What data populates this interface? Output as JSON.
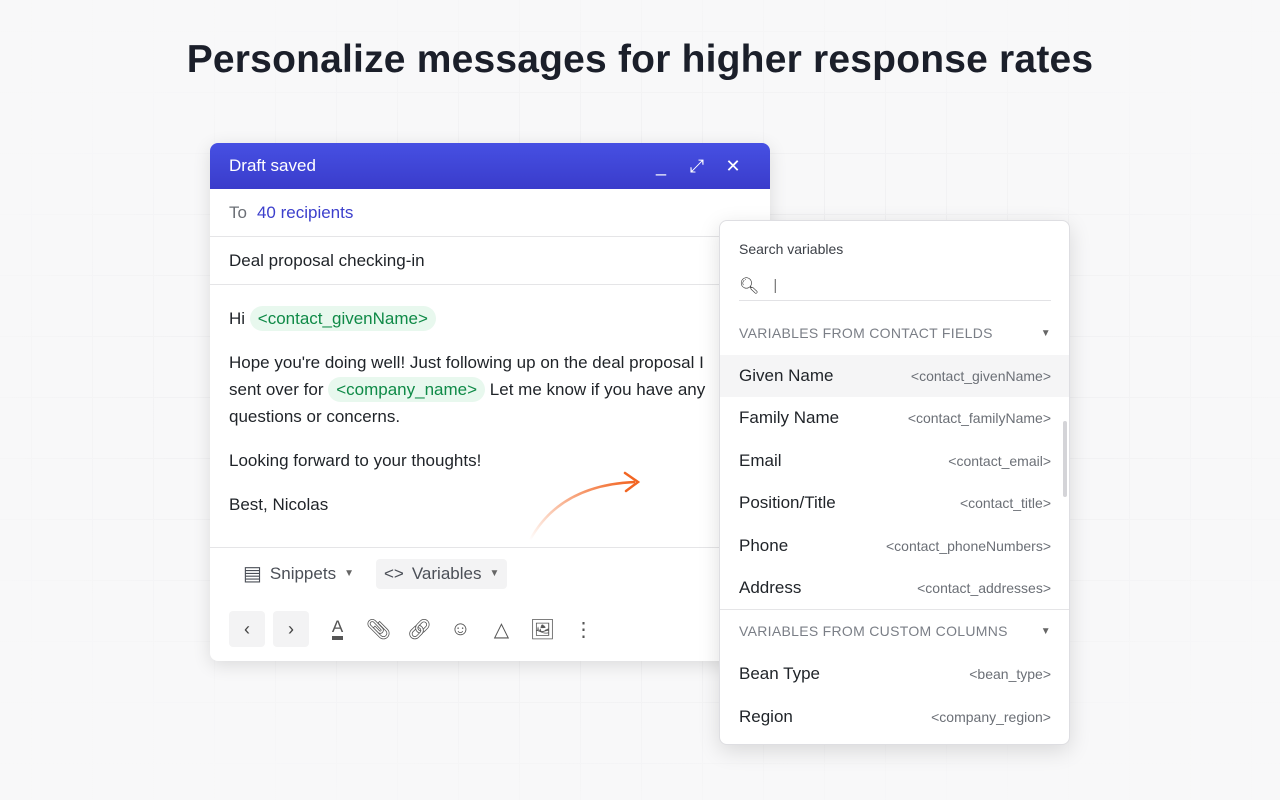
{
  "headline": "Personalize messages for higher response rates",
  "compose": {
    "title": "Draft saved",
    "to_label": "To",
    "recipients": "40 recipients",
    "subject": "Deal proposal checking-in",
    "body": {
      "greeting": "Hi",
      "greeting_var": "<contact_givenName>",
      "p1_a": "Hope you're doing well! Just following up on the deal proposal I",
      "p1_b": "sent over for",
      "p1_var": "<company_name>",
      "p1_c": "Let me know if you have any",
      "p1_d": "questions or concerns.",
      "p2": "Looking forward to your thoughts!",
      "p3": "Best, Nicolas"
    },
    "toolbar": {
      "snippets": "Snippets",
      "variables": "Variables"
    }
  },
  "panel": {
    "search_label": "Search variables",
    "search_value": "|",
    "sections": [
      {
        "title": "VARIABLES FROM CONTACT FIELDS",
        "items": [
          {
            "name": "Given Name",
            "var": "<contact_givenName>"
          },
          {
            "name": "Family Name",
            "var": "<contact_familyName>"
          },
          {
            "name": "Email",
            "var": "<contact_email>"
          },
          {
            "name": "Position/Title",
            "var": "<contact_title>"
          },
          {
            "name": "Phone",
            "var": "<contact_phoneNumbers>"
          },
          {
            "name": "Address",
            "var": "<contact_addresses>"
          }
        ]
      },
      {
        "title": "VARIABLES FROM CUSTOM COLUMNS",
        "items": [
          {
            "name": "Bean Type",
            "var": "<bean_type>"
          },
          {
            "name": "Region",
            "var": "<company_region>"
          }
        ]
      }
    ]
  },
  "colors": {
    "header": "#4048d8",
    "accent": "#3c3fcc",
    "chip_bg": "#e8f8ee",
    "chip_text": "#0f8a47",
    "arrow": "#f26522"
  }
}
